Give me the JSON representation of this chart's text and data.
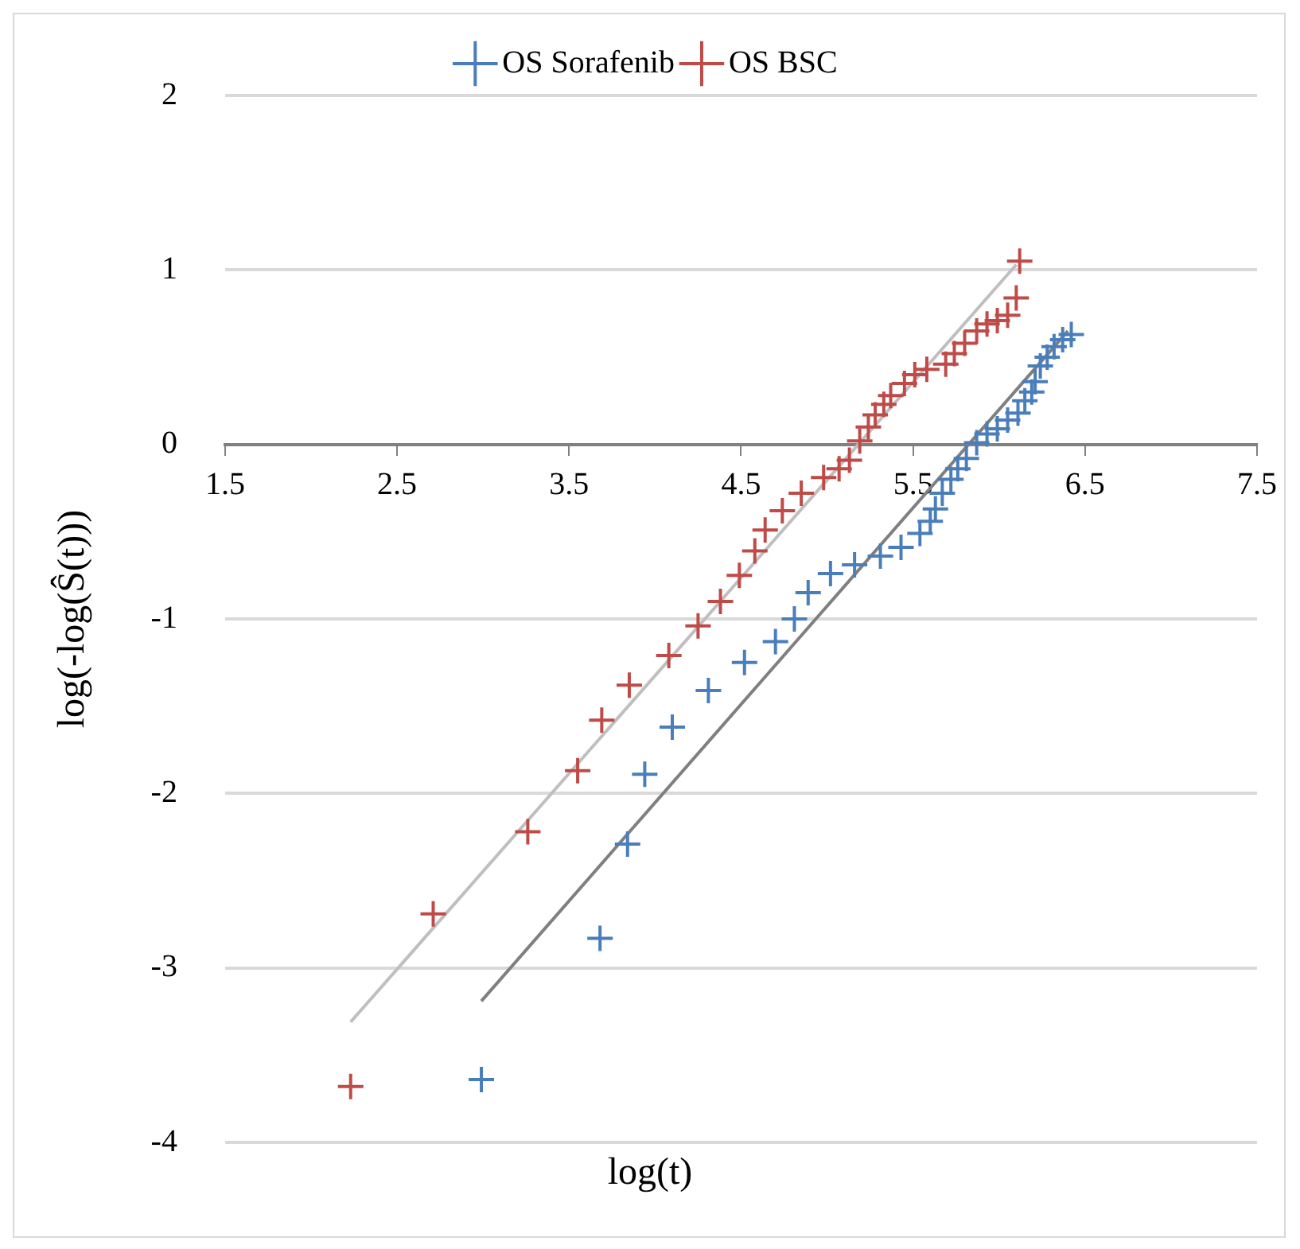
{
  "chart_data": {
    "type": "scatter",
    "xlabel": "log(t)",
    "ylabel": "log(-log(Ŝ(t)))",
    "xlim": [
      1.5,
      7.5
    ],
    "xticks": [
      1.5,
      2.5,
      3.5,
      4.5,
      5.5,
      6.5,
      7.5
    ],
    "ylim": [
      -4,
      2
    ],
    "yticks": [
      -4,
      -3,
      -2,
      -1,
      0,
      1,
      2
    ],
    "grid": "y",
    "legend": "top",
    "marker": "cross",
    "series": [
      {
        "name": "OS Sorafenib",
        "color": "#4a7ebb",
        "x": [
          2.99,
          3.68,
          3.84,
          3.94,
          4.1,
          4.31,
          4.52,
          4.7,
          4.81,
          4.89,
          5.02,
          5.16,
          5.31,
          5.43,
          5.54,
          5.6,
          5.63,
          5.67,
          5.72,
          5.76,
          5.81,
          5.87,
          5.93,
          5.99,
          6.05,
          6.11,
          6.15,
          6.19,
          6.21,
          6.24,
          6.28,
          6.32,
          6.37,
          6.42
        ],
        "values": [
          -3.64,
          -2.83,
          -2.29,
          -1.89,
          -1.62,
          -1.41,
          -1.25,
          -1.13,
          -1.0,
          -0.85,
          -0.74,
          -0.69,
          -0.64,
          -0.59,
          -0.51,
          -0.44,
          -0.37,
          -0.28,
          -0.2,
          -0.14,
          -0.08,
          0.01,
          0.06,
          0.09,
          0.14,
          0.18,
          0.25,
          0.3,
          0.36,
          0.45,
          0.5,
          0.56,
          0.6,
          0.63
        ]
      },
      {
        "name": "OS BSC",
        "color": "#be4b48",
        "x": [
          2.23,
          2.71,
          3.26,
          3.55,
          3.69,
          3.85,
          4.08,
          4.25,
          4.38,
          4.49,
          4.58,
          4.64,
          4.74,
          4.85,
          4.98,
          5.07,
          5.13,
          5.19,
          5.24,
          5.28,
          5.33,
          5.37,
          5.45,
          5.51,
          5.58,
          5.69,
          5.74,
          5.8,
          5.87,
          5.93,
          5.99,
          6.05,
          6.1,
          6.12
        ],
        "values": [
          -3.68,
          -2.69,
          -2.22,
          -1.87,
          -1.58,
          -1.38,
          -1.21,
          -1.04,
          -0.9,
          -0.75,
          -0.61,
          -0.49,
          -0.38,
          -0.28,
          -0.19,
          -0.14,
          -0.09,
          0.02,
          0.1,
          0.17,
          0.23,
          0.28,
          0.35,
          0.4,
          0.43,
          0.46,
          0.52,
          0.58,
          0.65,
          0.69,
          0.71,
          0.74,
          0.84,
          1.05
        ]
      },
      {
        "type": "line",
        "color": "#bfbfbf",
        "marker": "none",
        "x": [
          2.23,
          6.1
        ],
        "values": [
          -3.31,
          1.03
        ]
      },
      {
        "type": "line",
        "color": "#7f7f7f",
        "marker": "none",
        "x": [
          2.99,
          6.4
        ],
        "values": [
          -3.19,
          0.65
        ]
      }
    ]
  }
}
